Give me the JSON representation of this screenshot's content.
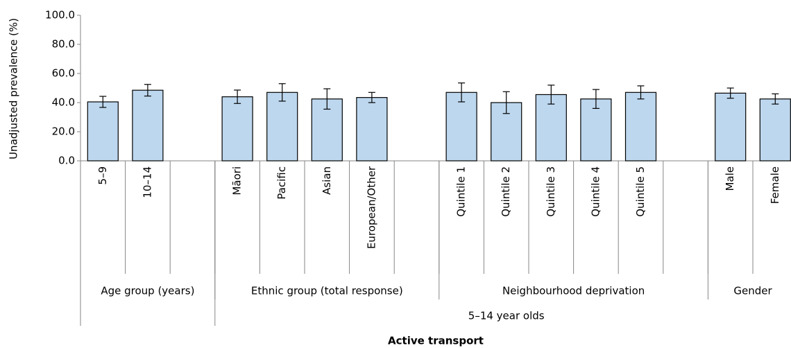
{
  "chart_data": {
    "type": "bar",
    "x_label": "Active transport",
    "y_label": "Unadjusted prevalence (%)",
    "categories": [
      "5–9",
      "10–14",
      null,
      "Māori",
      "Pacific",
      "Asian",
      "European/Other",
      null,
      "Quintile 1",
      "Quintile 2",
      "Quintile 3",
      "Quintile 4",
      "Quintile 5",
      null,
      "Male",
      "Female"
    ],
    "values": [
      40.5,
      48.5,
      null,
      44,
      47,
      42.5,
      43.5,
      null,
      47,
      40,
      45.5,
      42.5,
      47,
      null,
      46.5,
      42.5
    ],
    "errors": [
      3.8,
      4,
      null,
      4.6,
      6,
      7,
      3.5,
      null,
      6.5,
      7.5,
      6.5,
      6.5,
      4.5,
      null,
      3.5,
      3.5
    ],
    "groups": [
      {
        "label": "Age group (years)",
        "span": 3
      },
      {
        "label": "Ethnic group (total response)",
        "span": 5
      },
      {
        "label": "Neighbourhood deprivation",
        "span": 6
      },
      {
        "label": "Gender",
        "span": 2
      }
    ],
    "outer_groups": [
      {
        "label": null,
        "span": 3
      },
      {
        "label": "5–14 year olds",
        "span": 13
      }
    ],
    "color": "#bdd7ee",
    "ylim": [
      0,
      100
    ],
    "yticks": [
      {
        "value": 0,
        "label": "0.0"
      },
      {
        "value": 20,
        "label": "20.0"
      },
      {
        "value": 40,
        "label": "40.0"
      },
      {
        "value": 60,
        "label": "60.0"
      },
      {
        "value": 80,
        "label": "80.0"
      },
      {
        "value": 100,
        "label": "100.0"
      }
    ]
  }
}
